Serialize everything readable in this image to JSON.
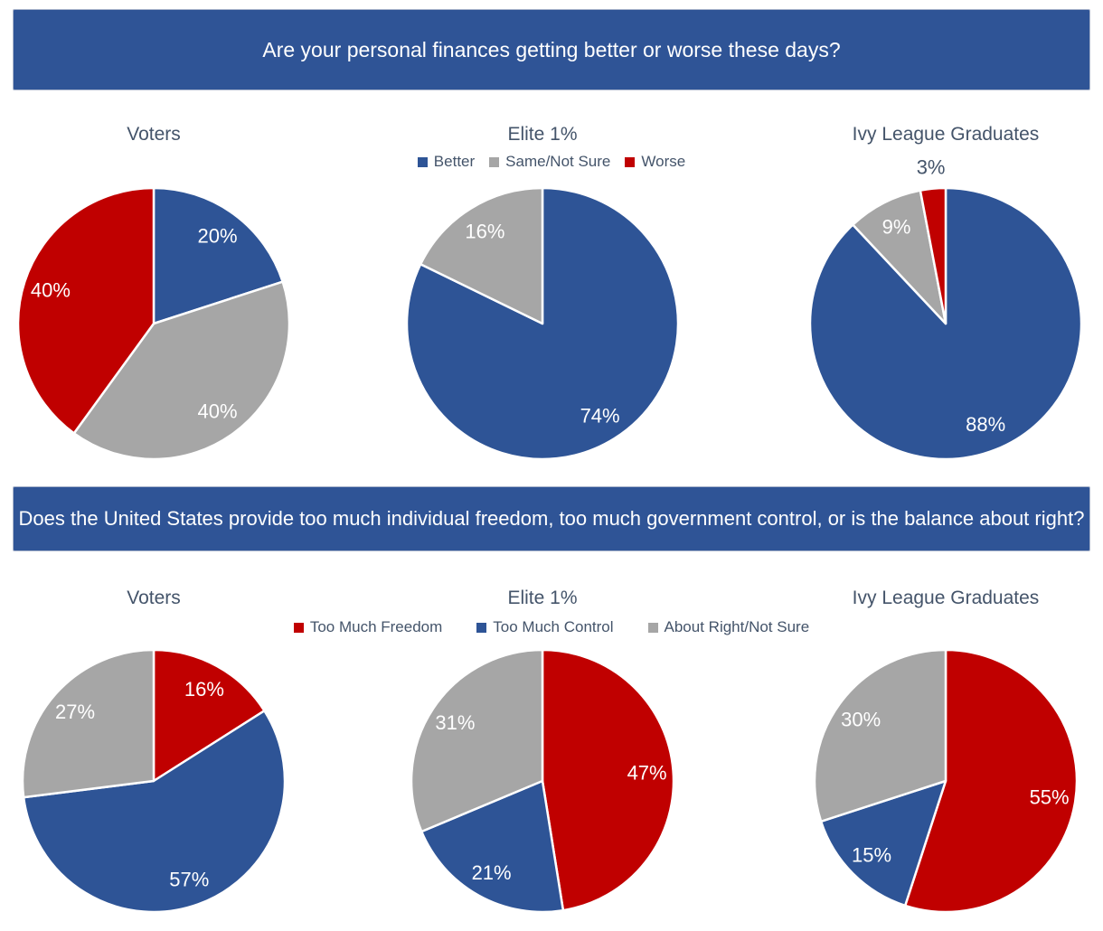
{
  "colors": {
    "blue": "#2E5496",
    "red": "#C00000",
    "gray": "#A6A6A6",
    "banner_bg": "#2F5496",
    "banner_text": "#FFFFFF",
    "title_text": "#44546A",
    "label_inside": "#FFFFFF",
    "label_outside": "#44546A"
  },
  "chart_data": [
    {
      "type": "pie",
      "question": "Are your personal finances getting better or worse these days?",
      "legend_position": "top-center",
      "legend": [
        {
          "label": "Better",
          "color": "blue"
        },
        {
          "label": "Same/Not Sure",
          "color": "gray"
        },
        {
          "label": "Worse",
          "color": "red"
        }
      ],
      "panels": [
        {
          "title": "Voters",
          "slices": [
            {
              "series": "Better",
              "value": 20,
              "label": "20%",
              "color": "blue"
            },
            {
              "series": "Same/Not Sure",
              "value": 40,
              "label": "40%",
              "color": "gray"
            },
            {
              "series": "Worse",
              "value": 40,
              "label": "40%",
              "color": "red"
            }
          ]
        },
        {
          "title": "Elite 1%",
          "slices": [
            {
              "series": "Better",
              "value": 74,
              "label": "74%",
              "color": "blue"
            },
            {
              "series": "Same/Not Sure",
              "value": 16,
              "label": "16%",
              "color": "gray"
            }
          ]
        },
        {
          "title": "Ivy League Graduates",
          "slices": [
            {
              "series": "Better",
              "value": 88,
              "label": "88%",
              "color": "blue"
            },
            {
              "series": "Same/Not Sure",
              "value": 9,
              "label": "9%",
              "color": "gray"
            },
            {
              "series": "Worse",
              "value": 3,
              "label": "3%",
              "color": "red",
              "label_outside": true
            }
          ]
        }
      ]
    },
    {
      "type": "pie",
      "question": "Does the United States provide too much individual freedom, too much government control, or is the balance about right?",
      "legend_position": "top-center",
      "legend": [
        {
          "label": "Too Much Freedom",
          "color": "red"
        },
        {
          "label": "Too Much Control",
          "color": "blue"
        },
        {
          "label": "About Right/Not Sure",
          "color": "gray"
        }
      ],
      "panels": [
        {
          "title": "Voters",
          "slices": [
            {
              "series": "Too Much Freedom",
              "value": 16,
              "label": "16%",
              "color": "red"
            },
            {
              "series": "Too Much Control",
              "value": 57,
              "label": "57%",
              "color": "blue"
            },
            {
              "series": "About Right/Not Sure",
              "value": 27,
              "label": "27%",
              "color": "gray"
            }
          ]
        },
        {
          "title": "Elite 1%",
          "slices": [
            {
              "series": "Too Much Freedom",
              "value": 47,
              "label": "47%",
              "color": "red"
            },
            {
              "series": "Too Much Control",
              "value": 21,
              "label": "21%",
              "color": "blue"
            },
            {
              "series": "About Right/Not Sure",
              "value": 31,
              "label": "31%",
              "color": "gray"
            }
          ]
        },
        {
          "title": "Ivy League Graduates",
          "slices": [
            {
              "series": "Too Much Freedom",
              "value": 55,
              "label": "55%",
              "color": "red"
            },
            {
              "series": "Too Much Control",
              "value": 15,
              "label": "15%",
              "color": "blue"
            },
            {
              "series": "About Right/Not Sure",
              "value": 30,
              "label": "30%",
              "color": "gray"
            }
          ]
        }
      ]
    }
  ]
}
